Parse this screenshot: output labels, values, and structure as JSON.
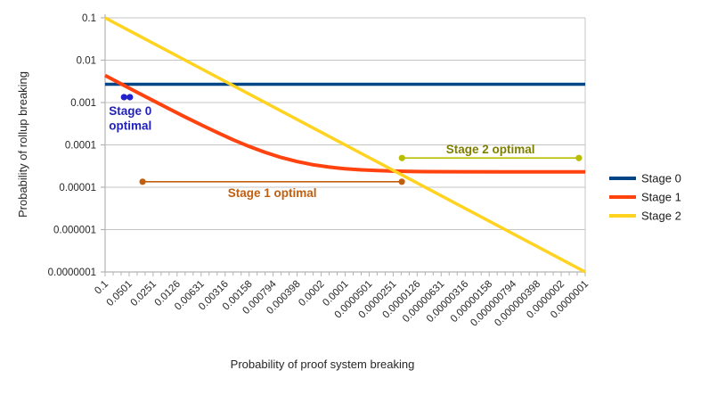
{
  "chart_data": {
    "type": "line",
    "title": "",
    "xlabel": "Probability of proof system breaking",
    "ylabel": "Probability of rollup breaking",
    "x_scale": "log",
    "y_scale": "log",
    "x_range_left_to_right": [
      0.1,
      1e-07
    ],
    "y_range_bottom_to_top": [
      1e-07,
      0.1
    ],
    "grid": "horizontal-decades",
    "x_tick_labels": [
      "0.1",
      "0.0501",
      "0.0251",
      "0.0126",
      "0.00631",
      "0.00316",
      "0.00158",
      "0.000794",
      "0.000398",
      "0.0002",
      "0.0001",
      "0.0000501",
      "0.0000251",
      "0.0000126",
      "0.00000631",
      "0.00000316",
      "0.00000158",
      "0.000000794",
      "0.000000398",
      "0.0000002",
      "0.0000001"
    ],
    "y_tick_labels": [
      "0.1",
      "0.01",
      "0.001",
      "0.0001",
      "0.00001",
      "0.000001",
      "0.0000001"
    ],
    "series": [
      {
        "name": "Stage 0",
        "color": "#004586",
        "width": 3.5,
        "points": [
          [
            0.1,
            0.0027
          ],
          [
            1e-07,
            0.0027
          ]
        ]
      },
      {
        "name": "Stage 1",
        "color": "#ff420e",
        "width": 4,
        "points": [
          [
            0.1,
            0.00436
          ],
          [
            0.0631,
            0.00276
          ],
          [
            0.0398,
            0.00175
          ],
          [
            0.0251,
            0.00111
          ],
          [
            0.0158,
            0.000709
          ],
          [
            0.01,
            0.000457
          ],
          [
            0.00631,
            0.000297
          ],
          [
            0.00398,
            0.000196
          ],
          [
            0.00251,
            0.000132
          ],
          [
            0.00158,
            9.16e-05
          ],
          [
            0.001,
            6.64e-05
          ],
          [
            0.000631,
            5.04e-05
          ],
          [
            0.000398,
            4.03e-05
          ],
          [
            0.000251,
            3.39e-05
          ],
          [
            0.000158,
            2.99e-05
          ],
          [
            0.0001,
            2.73e-05
          ],
          [
            6.31e-05,
            2.57e-05
          ],
          [
            3.98e-05,
            2.47e-05
          ],
          [
            2.51e-05,
            2.41e-05
          ],
          [
            1.58e-05,
            2.37e-05
          ],
          [
            1e-05,
            2.34e-05
          ],
          [
            1e-06,
            2.3e-05
          ],
          [
            1e-07,
            2.3e-05
          ]
        ]
      },
      {
        "name": "Stage 2",
        "color": "#ffd320",
        "width": 3.5,
        "points": [
          [
            0.1,
            0.1
          ],
          [
            1e-07,
            1e-07
          ]
        ]
      }
    ],
    "annotations": [
      {
        "id": "stage0-optimal",
        "lines": [
          "Stage 0",
          "optimal"
        ],
        "text_color": "#2222bb",
        "line_color": "#2222cc",
        "marker": {
          "x1": 0.058,
          "x2": 0.049,
          "y": 0.00134
        },
        "label_placement": "below-left"
      },
      {
        "id": "stage1-optimal",
        "lines": [
          "Stage 1 optimal"
        ],
        "text_color": "#c05f10",
        "line_color": "#c05f10",
        "marker": {
          "x1": 0.034,
          "x2": 1.96e-05,
          "y": 1.35e-05
        },
        "label_placement": "below-center"
      },
      {
        "id": "stage2-optimal",
        "lines": [
          "Stage 2 optimal"
        ],
        "text_color": "#7f7f00",
        "line_color": "#b9bd00",
        "marker": {
          "x1": 1.95e-05,
          "x2": 1.2e-07,
          "y": 4.9e-05
        },
        "label_placement": "above-center"
      }
    ],
    "legend": {
      "position": "right",
      "items": [
        {
          "label": "Stage 0",
          "color": "#004586"
        },
        {
          "label": "Stage 1",
          "color": "#ff420e"
        },
        {
          "label": "Stage 2",
          "color": "#ffd320"
        }
      ]
    },
    "colors": {
      "background": "#ffffff",
      "gridline": "#c4c4c4",
      "axis": "#b3b3b3",
      "tick_text": "#262626"
    }
  }
}
